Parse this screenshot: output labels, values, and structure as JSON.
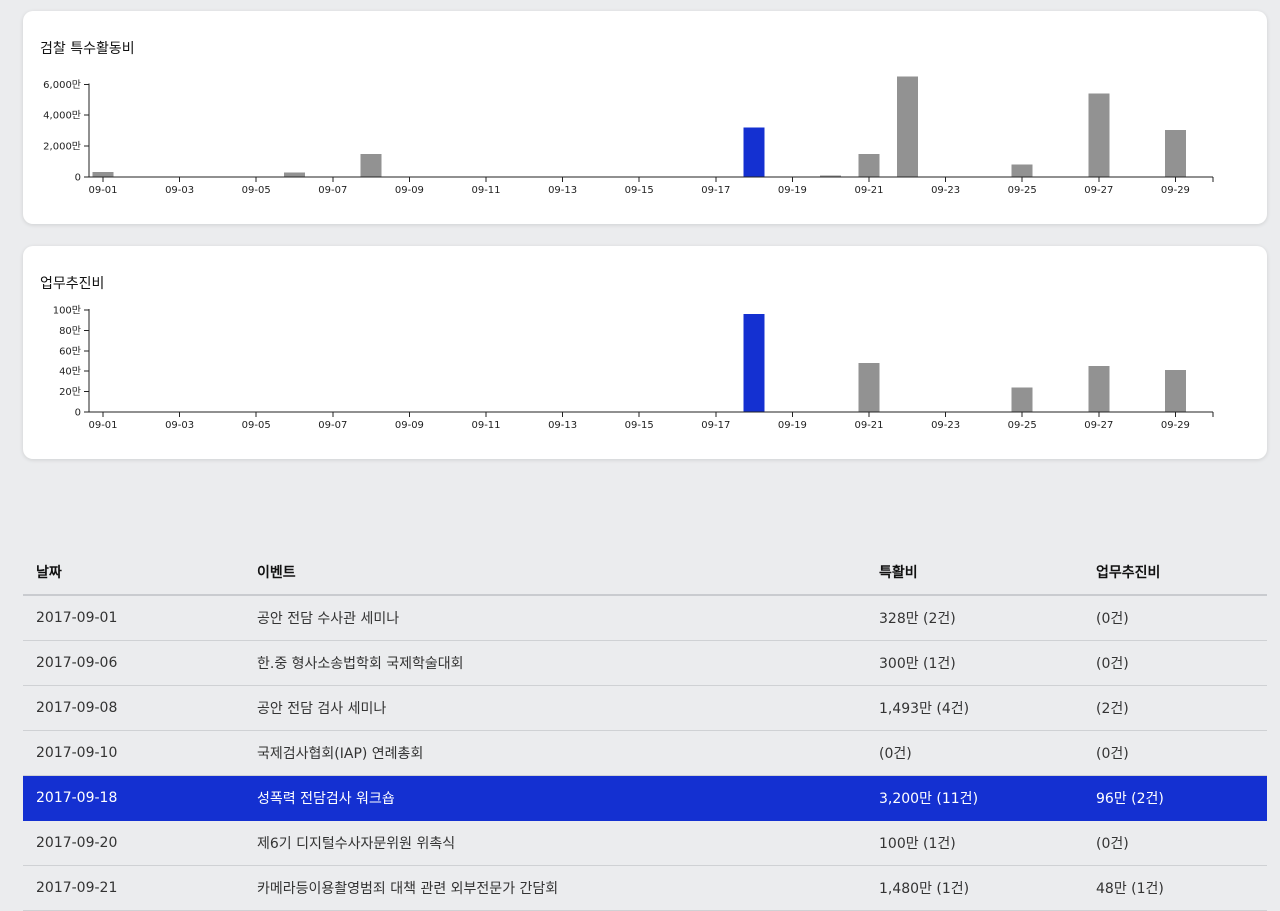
{
  "colors": {
    "bar_default": "#929292",
    "bar_highlight": "#1430d1",
    "page_bg": "#ebecee"
  },
  "chart_data": [
    {
      "type": "bar",
      "title": "검찰 특수활동비",
      "unit": "만",
      "ylim": [
        0,
        6600
      ],
      "yticks": [
        0,
        2000,
        4000,
        6000
      ],
      "ytick_labels": [
        "0",
        "2,000만",
        "4,000만",
        "6,000만"
      ],
      "xtick_labels": [
        "09-01",
        "09-03",
        "09-05",
        "09-07",
        "09-09",
        "09-11",
        "09-13",
        "09-15",
        "09-17",
        "09-19",
        "09-21",
        "09-23",
        "09-25",
        "09-27",
        "09-29"
      ],
      "highlight_day": 18,
      "bars": [
        {
          "day": 1,
          "value": 328
        },
        {
          "day": 6,
          "value": 300
        },
        {
          "day": 8,
          "value": 1493
        },
        {
          "day": 18,
          "value": 3200
        },
        {
          "day": 20,
          "value": 100
        },
        {
          "day": 21,
          "value": 1480
        },
        {
          "day": 22,
          "value": 6500
        },
        {
          "day": 25,
          "value": 800
        },
        {
          "day": 27,
          "value": 5400
        },
        {
          "day": 29,
          "value": 3050
        }
      ]
    },
    {
      "type": "bar",
      "title": "업무추진비",
      "unit": "만",
      "ylim": [
        0,
        100
      ],
      "yticks": [
        0,
        20,
        40,
        60,
        80,
        100
      ],
      "ytick_labels": [
        "0",
        "20만",
        "40만",
        "60만",
        "80만",
        "100만"
      ],
      "xtick_labels": [
        "09-01",
        "09-03",
        "09-05",
        "09-07",
        "09-09",
        "09-11",
        "09-13",
        "09-15",
        "09-17",
        "09-19",
        "09-21",
        "09-23",
        "09-25",
        "09-27",
        "09-29"
      ],
      "highlight_day": 18,
      "bars": [
        {
          "day": 18,
          "value": 96
        },
        {
          "day": 21,
          "value": 48
        },
        {
          "day": 25,
          "value": 24
        },
        {
          "day": 27,
          "value": 45
        },
        {
          "day": 29,
          "value": 41
        }
      ]
    }
  ],
  "table": {
    "headers": {
      "date": "날짜",
      "event": "이벤트",
      "special": "특활비",
      "business": "업무추진비"
    },
    "rows": [
      {
        "date": "2017-09-01",
        "event": "공안 전담 수사관 세미나",
        "special": "328만 (2건)",
        "business": "(0건)",
        "highlight": false
      },
      {
        "date": "2017-09-06",
        "event": "한.중 형사소송법학회 국제학술대회",
        "special": "300만 (1건)",
        "business": "(0건)",
        "highlight": false
      },
      {
        "date": "2017-09-08",
        "event": "공안 전담 검사 세미나",
        "special": "1,493만 (4건)",
        "business": "(2건)",
        "highlight": false
      },
      {
        "date": "2017-09-10",
        "event": "국제검사협회(IAP) 연례총회",
        "special": "(0건)",
        "business": "(0건)",
        "highlight": false
      },
      {
        "date": "2017-09-18",
        "event": "성폭력 전담검사 워크숍",
        "special": "3,200만 (11건)",
        "business": "96만 (2건)",
        "highlight": true
      },
      {
        "date": "2017-09-20",
        "event": "제6기 디지털수사자문위원 위촉식",
        "special": "100만 (1건)",
        "business": "(0건)",
        "highlight": false
      },
      {
        "date": "2017-09-21",
        "event": "카메라등이용촬영범죄 대책 관련 외부전문가 간담회",
        "special": "1,480만 (1건)",
        "business": "48만 (1건)",
        "highlight": false
      }
    ]
  }
}
